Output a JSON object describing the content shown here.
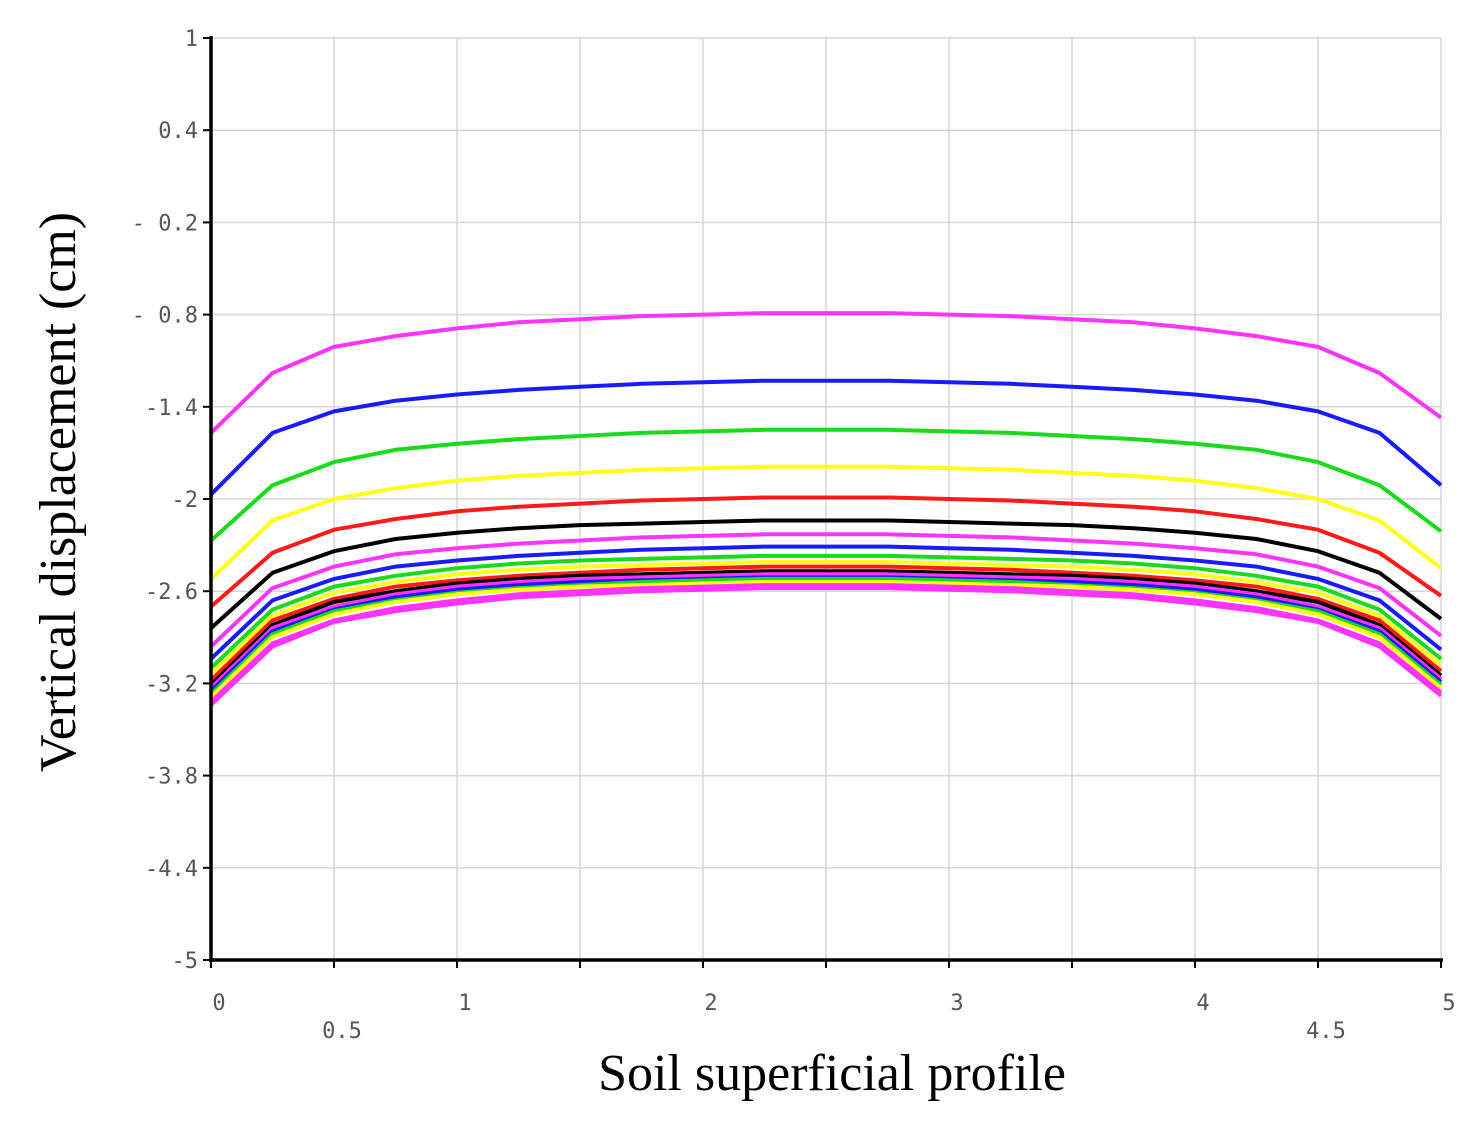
{
  "chart_data": {
    "type": "line",
    "title": "",
    "xlabel": "Soil superficial profile",
    "ylabel": "Vertical displacement (cm)",
    "xlim": [
      0,
      5
    ],
    "ylim": [
      -5,
      1
    ],
    "grid": true,
    "legend": "none",
    "x_ticks": [
      {
        "value": 0,
        "label": "0"
      },
      {
        "value": 0.5,
        "label": "0.5"
      },
      {
        "value": 1,
        "label": "1"
      },
      {
        "value": 2,
        "label": "2"
      },
      {
        "value": 3,
        "label": "3"
      },
      {
        "value": 4,
        "label": "4"
      },
      {
        "value": 4.5,
        "label": "4.5"
      },
      {
        "value": 5,
        "label": "5"
      }
    ],
    "x_grid": [
      0.5,
      1,
      1.5,
      2,
      2.5,
      3,
      3.5,
      4,
      4.5
    ],
    "y_ticks": [
      {
        "value": 1,
        "label": "1"
      },
      {
        "value": 0.4,
        "label": "0.4"
      },
      {
        "value": -0.2,
        "label": "- 0.2"
      },
      {
        "value": -0.8,
        "label": "- 0.8"
      },
      {
        "value": -1.4,
        "label": "-1.4"
      },
      {
        "value": -2,
        "label": "-2"
      },
      {
        "value": -2.6,
        "label": "-2.6"
      },
      {
        "value": -3.2,
        "label": "-3.2"
      },
      {
        "value": -3.8,
        "label": "-3.8"
      },
      {
        "value": -4.4,
        "label": "-4.4"
      },
      {
        "value": -5,
        "label": "-5"
      }
    ],
    "x": [
      0,
      0.25,
      0.5,
      0.75,
      1,
      1.25,
      1.5,
      1.75,
      2,
      2.25,
      2.5,
      2.75,
      3,
      3.25,
      3.5,
      3.75,
      4,
      4.25,
      4.5,
      4.75,
      5
    ],
    "series": [
      {
        "color": "#ff33ff",
        "values": [
          -1.57,
          -1.18,
          -1.01,
          -0.94,
          -0.89,
          -0.85,
          -0.83,
          -0.81,
          -0.8,
          -0.79,
          -0.79,
          -0.79,
          -0.8,
          -0.81,
          -0.83,
          -0.85,
          -0.89,
          -0.94,
          -1.01,
          -1.18,
          -1.47
        ]
      },
      {
        "color": "#1a1aff",
        "values": [
          -1.97,
          -1.57,
          -1.43,
          -1.36,
          -1.32,
          -1.29,
          -1.27,
          -1.25,
          -1.24,
          -1.23,
          -1.23,
          -1.23,
          -1.24,
          -1.25,
          -1.27,
          -1.29,
          -1.32,
          -1.36,
          -1.43,
          -1.57,
          -1.91
        ]
      },
      {
        "color": "#1adb1a",
        "values": [
          -2.27,
          -1.91,
          -1.76,
          -1.68,
          -1.64,
          -1.61,
          -1.59,
          -1.57,
          -1.56,
          -1.55,
          -1.55,
          -1.55,
          -1.56,
          -1.57,
          -1.59,
          -1.61,
          -1.64,
          -1.68,
          -1.76,
          -1.91,
          -2.21
        ]
      },
      {
        "color": "#ffff1a",
        "values": [
          -2.52,
          -2.14,
          -2.0,
          -1.93,
          -1.88,
          -1.85,
          -1.83,
          -1.81,
          -1.8,
          -1.79,
          -1.79,
          -1.79,
          -1.8,
          -1.81,
          -1.83,
          -1.85,
          -1.88,
          -1.93,
          -2.0,
          -2.14,
          -2.45
        ]
      },
      {
        "color": "#ff1a1a",
        "values": [
          -2.7,
          -2.35,
          -2.2,
          -2.13,
          -2.08,
          -2.05,
          -2.03,
          -2.01,
          -2.0,
          -1.99,
          -1.99,
          -1.99,
          -2.0,
          -2.01,
          -2.03,
          -2.05,
          -2.08,
          -2.13,
          -2.2,
          -2.35,
          -2.63
        ]
      },
      {
        "color": "#000000",
        "values": [
          -2.84,
          -2.48,
          -2.34,
          -2.26,
          -2.22,
          -2.19,
          -2.17,
          -2.16,
          -2.15,
          -2.14,
          -2.14,
          -2.14,
          -2.15,
          -2.16,
          -2.17,
          -2.19,
          -2.22,
          -2.26,
          -2.34,
          -2.48,
          -2.78
        ]
      },
      {
        "color": "#ff33ff",
        "values": [
          -2.96,
          -2.58,
          -2.44,
          -2.36,
          -2.32,
          -2.29,
          -2.27,
          -2.25,
          -2.24,
          -2.23,
          -2.23,
          -2.23,
          -2.24,
          -2.25,
          -2.27,
          -2.29,
          -2.32,
          -2.36,
          -2.44,
          -2.58,
          -2.89
        ]
      },
      {
        "color": "#1a1aff",
        "values": [
          -3.04,
          -2.66,
          -2.52,
          -2.44,
          -2.4,
          -2.37,
          -2.35,
          -2.33,
          -2.32,
          -2.31,
          -2.31,
          -2.31,
          -2.32,
          -2.33,
          -2.35,
          -2.37,
          -2.4,
          -2.44,
          -2.52,
          -2.66,
          -2.98
        ]
      },
      {
        "color": "#1adb1a",
        "values": [
          -3.1,
          -2.72,
          -2.57,
          -2.5,
          -2.45,
          -2.42,
          -2.4,
          -2.39,
          -2.38,
          -2.37,
          -2.37,
          -2.37,
          -2.38,
          -2.39,
          -2.4,
          -2.42,
          -2.45,
          -2.5,
          -2.57,
          -2.72,
          -3.04
        ]
      },
      {
        "color": "#ffff1a",
        "values": [
          -3.14,
          -2.76,
          -2.61,
          -2.54,
          -2.49,
          -2.46,
          -2.44,
          -2.43,
          -2.42,
          -2.41,
          -2.41,
          -2.41,
          -2.42,
          -2.43,
          -2.44,
          -2.46,
          -2.49,
          -2.54,
          -2.61,
          -2.76,
          -3.08
        ]
      },
      {
        "color": "#ff1a1a",
        "values": [
          -3.18,
          -2.79,
          -2.65,
          -2.57,
          -2.53,
          -2.5,
          -2.48,
          -2.46,
          -2.45,
          -2.44,
          -2.44,
          -2.44,
          -2.45,
          -2.46,
          -2.48,
          -2.5,
          -2.53,
          -2.57,
          -2.65,
          -2.79,
          -3.12
        ]
      },
      {
        "color": "#000000",
        "values": [
          -3.21,
          -2.82,
          -2.67,
          -2.6,
          -2.55,
          -2.52,
          -2.5,
          -2.49,
          -2.48,
          -2.47,
          -2.47,
          -2.47,
          -2.48,
          -2.49,
          -2.5,
          -2.52,
          -2.55,
          -2.6,
          -2.67,
          -2.82,
          -3.15
        ]
      },
      {
        "color": "#ff33ff",
        "values": [
          -3.23,
          -2.84,
          -2.7,
          -2.62,
          -2.57,
          -2.54,
          -2.52,
          -2.51,
          -2.5,
          -2.49,
          -2.49,
          -2.49,
          -2.5,
          -2.51,
          -2.52,
          -2.54,
          -2.57,
          -2.62,
          -2.7,
          -2.84,
          -3.17
        ]
      },
      {
        "color": "#1a1aff",
        "values": [
          -3.25,
          -2.86,
          -2.72,
          -2.64,
          -2.59,
          -2.56,
          -2.54,
          -2.53,
          -2.52,
          -2.51,
          -2.51,
          -2.51,
          -2.52,
          -2.53,
          -2.54,
          -2.56,
          -2.59,
          -2.64,
          -2.72,
          -2.86,
          -3.19
        ]
      },
      {
        "color": "#1adb1a",
        "values": [
          -3.27,
          -2.88,
          -2.73,
          -2.66,
          -2.61,
          -2.58,
          -2.56,
          -2.54,
          -2.53,
          -2.52,
          -2.52,
          -2.52,
          -2.53,
          -2.54,
          -2.56,
          -2.58,
          -2.61,
          -2.66,
          -2.73,
          -2.88,
          -3.21
        ]
      },
      {
        "color": "#ffff1a",
        "values": [
          -3.29,
          -2.9,
          -2.75,
          -2.67,
          -2.62,
          -2.59,
          -2.57,
          -2.56,
          -2.55,
          -2.54,
          -2.54,
          -2.54,
          -2.55,
          -2.56,
          -2.57,
          -2.59,
          -2.62,
          -2.67,
          -2.75,
          -2.9,
          -3.23
        ]
      },
      {
        "color": "#ff33ff",
        "values": [
          -3.32,
          -2.94,
          -2.79,
          -2.71,
          -2.66,
          -2.62,
          -2.6,
          -2.58,
          -2.57,
          -2.56,
          -2.56,
          -2.56,
          -2.57,
          -2.58,
          -2.6,
          -2.62,
          -2.66,
          -2.71,
          -2.79,
          -2.94,
          -3.26
        ]
      },
      {
        "color": "#ff33ff",
        "values": [
          -3.34,
          -2.96,
          -2.8,
          -2.73,
          -2.68,
          -2.64,
          -2.62,
          -2.6,
          -2.59,
          -2.58,
          -2.58,
          -2.58,
          -2.59,
          -2.6,
          -2.62,
          -2.64,
          -2.68,
          -2.73,
          -2.8,
          -2.96,
          -3.28
        ]
      }
    ]
  }
}
